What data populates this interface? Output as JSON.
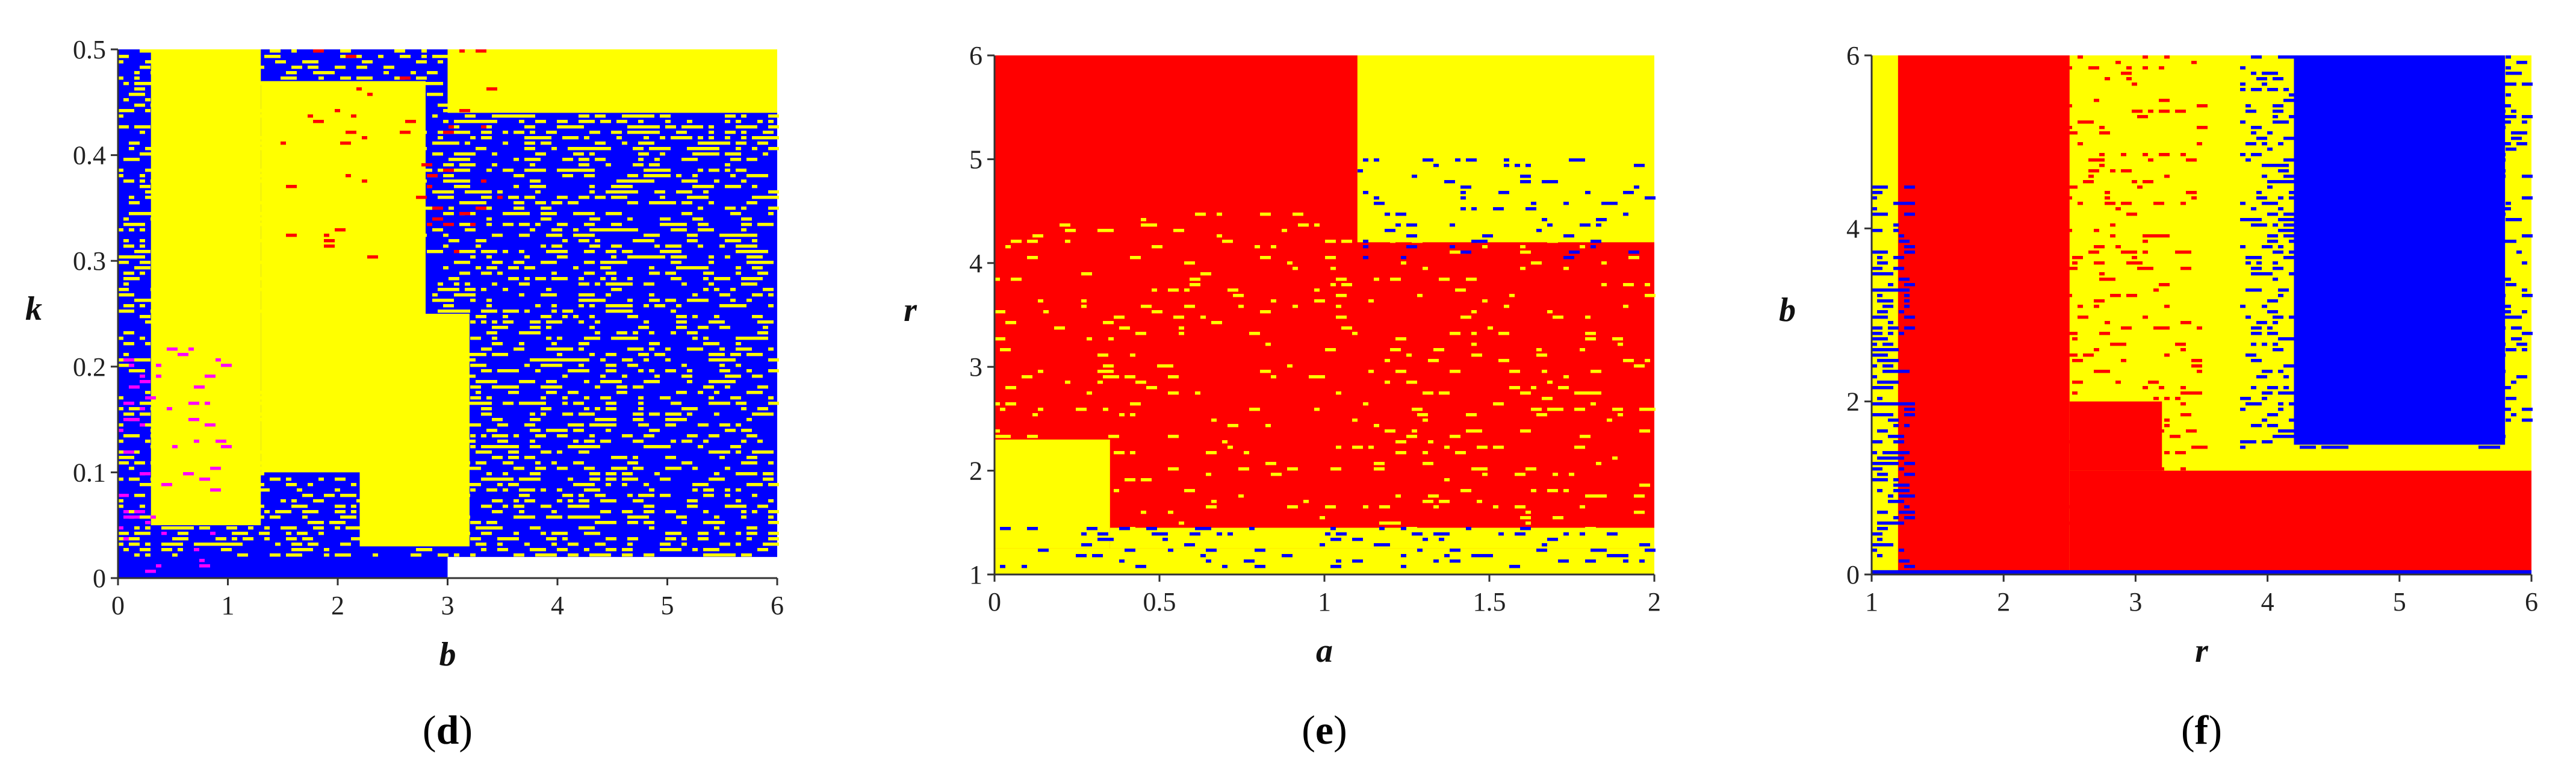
{
  "colors": {
    "yellow": "#ffff00",
    "red": "#ff0000",
    "blue": "#0000ff",
    "magenta": "#ff00ff",
    "axis": "#333333"
  },
  "chart_data": [
    {
      "type": "heatmap",
      "panel": "d",
      "caption_open": "(",
      "caption_letter": "d",
      "caption_close": ")",
      "xlabel": "b",
      "ylabel": "k",
      "xlim": [
        0,
        6
      ],
      "ylim": [
        0,
        0.5
      ],
      "xticks": [
        0,
        1,
        2,
        3,
        4,
        5,
        6
      ],
      "xtick_labels": [
        "0",
        "1",
        "2",
        "3",
        "4",
        "5",
        "6"
      ],
      "yticks": [
        0,
        0.1,
        0.2,
        0.3,
        0.4,
        0.5
      ],
      "ytick_labels": [
        "0",
        "0.1",
        "0.2",
        "0.3",
        "0.4",
        "0.5"
      ],
      "base_color": "blue",
      "regions": [
        {
          "color": "yellow",
          "x": [
            0.3,
            1.3
          ],
          "y": [
            0.05,
            0.5
          ]
        },
        {
          "color": "yellow",
          "x": [
            1.3,
            2.8
          ],
          "y": [
            0.1,
            0.47
          ]
        },
        {
          "color": "yellow",
          "x": [
            2.2,
            3.2
          ],
          "y": [
            0.03,
            0.25
          ]
        },
        {
          "color": "yellow",
          "x": [
            3.0,
            6.0
          ],
          "y": [
            0.44,
            0.5
          ]
        }
      ],
      "speckle": [
        {
          "color": "yellow",
          "x": [
            0.0,
            6.0
          ],
          "y": [
            0.02,
            0.5
          ],
          "density": 0.25
        },
        {
          "color": "red",
          "x": [
            1.5,
            3.5
          ],
          "y": [
            0.3,
            0.5
          ],
          "density": 0.03
        },
        {
          "color": "magenta",
          "x": [
            0.0,
            1.0
          ],
          "y": [
            0.0,
            0.22
          ],
          "density": 0.05
        }
      ],
      "blank_regions": [
        {
          "x": [
            3.0,
            6.0
          ],
          "y": [
            0.0,
            0.02
          ]
        }
      ]
    },
    {
      "type": "heatmap",
      "panel": "e",
      "caption_open": "(",
      "caption_letter": "e",
      "caption_close": ")",
      "xlabel": "a",
      "ylabel": "r",
      "xlim": [
        0,
        2
      ],
      "ylim": [
        1,
        6
      ],
      "xticks": [
        0,
        0.5,
        1,
        1.5,
        2
      ],
      "xtick_labels": [
        "0",
        "0.5",
        "1",
        "1.5",
        "2"
      ],
      "yticks": [
        1,
        2,
        3,
        4,
        5,
        6
      ],
      "ytick_labels": [
        "1",
        "2",
        "3",
        "4",
        "5",
        "6"
      ],
      "base_color": "red",
      "regions": [
        {
          "color": "yellow",
          "x": [
            0.0,
            2.0
          ],
          "y": [
            1.0,
            1.25
          ]
        },
        {
          "color": "yellow",
          "x": [
            0.0,
            0.35
          ],
          "y": [
            1.25,
            2.3
          ]
        },
        {
          "color": "yellow",
          "x": [
            0.35,
            2.0
          ],
          "y": [
            1.25,
            1.45
          ]
        },
        {
          "color": "yellow",
          "x": [
            1.1,
            2.0
          ],
          "y": [
            4.2,
            6.0
          ]
        }
      ],
      "speckle": [
        {
          "color": "yellow",
          "x": [
            0.0,
            2.0
          ],
          "y": [
            1.0,
            4.5
          ],
          "density": 0.05
        },
        {
          "color": "blue",
          "x": [
            0.0,
            2.0
          ],
          "y": [
            1.0,
            1.45
          ],
          "density": 0.12
        },
        {
          "color": "blue",
          "x": [
            1.1,
            2.0
          ],
          "y": [
            4.0,
            5.0
          ],
          "density": 0.08
        }
      ],
      "blank_regions": []
    },
    {
      "type": "heatmap",
      "panel": "f",
      "caption_open": "(",
      "caption_letter": "f",
      "caption_close": ")",
      "xlabel": "r",
      "ylabel": "b",
      "xlim": [
        1,
        6
      ],
      "ylim": [
        0,
        6
      ],
      "xticks": [
        1,
        2,
        3,
        4,
        5,
        6
      ],
      "xtick_labels": [
        "1",
        "2",
        "3",
        "4",
        "5",
        "6"
      ],
      "yticks": [
        0,
        2,
        4,
        6
      ],
      "ytick_labels": [
        "0",
        "2",
        "4",
        "6"
      ],
      "base_color": "yellow",
      "regions": [
        {
          "color": "red",
          "x": [
            1.2,
            2.5
          ],
          "y": [
            0.0,
            6.0
          ]
        },
        {
          "color": "red",
          "x": [
            2.5,
            6.0
          ],
          "y": [
            0.0,
            1.2
          ]
        },
        {
          "color": "red",
          "x": [
            2.5,
            3.2
          ],
          "y": [
            1.2,
            2.0
          ]
        },
        {
          "color": "blue",
          "x": [
            4.2,
            5.8
          ],
          "y": [
            1.5,
            6.0
          ]
        },
        {
          "color": "blue",
          "x": [
            1.0,
            6.0
          ],
          "y": [
            0.0,
            0.05
          ]
        }
      ],
      "speckle": [
        {
          "color": "blue",
          "x": [
            1.0,
            1.3
          ],
          "y": [
            0.0,
            4.5
          ],
          "density": 0.35
        },
        {
          "color": "blue",
          "x": [
            3.8,
            6.0
          ],
          "y": [
            1.4,
            6.0
          ],
          "density": 0.2
        },
        {
          "color": "red",
          "x": [
            2.0,
            3.5
          ],
          "y": [
            0.5,
            6.0
          ],
          "density": 0.1
        }
      ],
      "blank_regions": []
    }
  ]
}
